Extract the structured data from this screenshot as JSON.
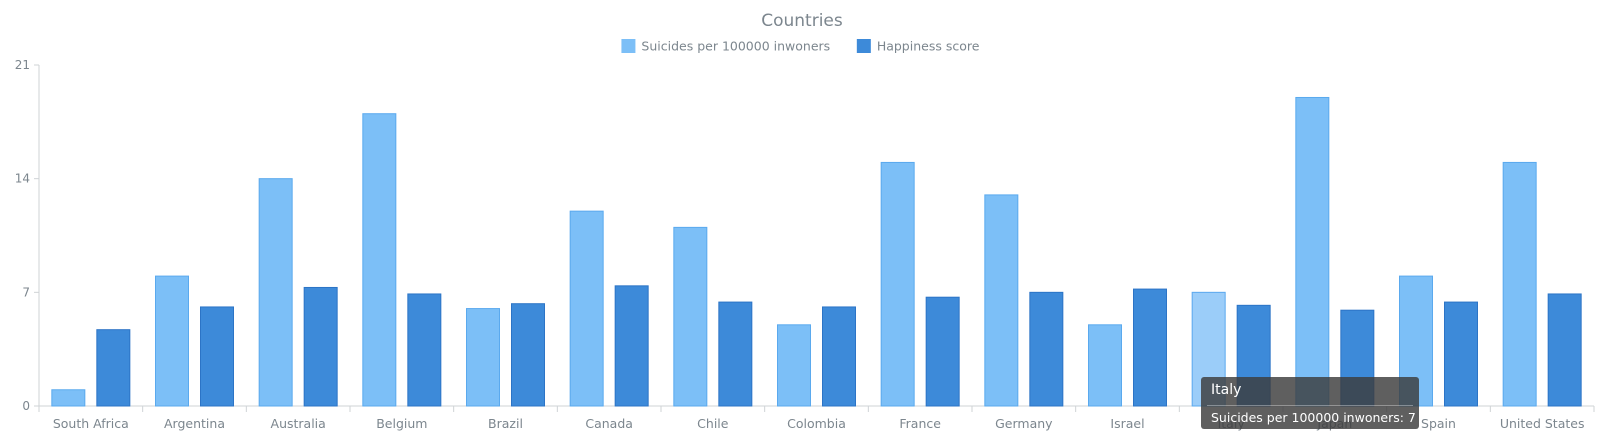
{
  "chart_data": {
    "type": "bar",
    "title": "Countries",
    "categories": [
      "South Africa",
      "Argentina",
      "Australia",
      "Belgium",
      "Brazil",
      "Canada",
      "Chile",
      "Colombia",
      "France",
      "Germany",
      "Israel",
      "Italy",
      "Japan",
      "Spain",
      "United States"
    ],
    "series": [
      {
        "name": "Suicides per 100000 inwoners",
        "color": "#7cbff7",
        "values": [
          1,
          8,
          14,
          18,
          6,
          12,
          11,
          5,
          15,
          13,
          5,
          7,
          19,
          8,
          15
        ]
      },
      {
        "name": "Happiness score",
        "color": "#3d8ad9",
        "values": [
          4.7,
          6.1,
          7.3,
          6.9,
          6.3,
          7.4,
          6.4,
          6.1,
          6.7,
          7.0,
          7.2,
          6.2,
          5.9,
          6.4,
          6.9
        ]
      }
    ],
    "ylim": [
      0,
      21
    ],
    "yticks": [
      0,
      7,
      14,
      21
    ],
    "legend_position": "top-center",
    "highlighted_category": "Italy"
  },
  "tooltip": {
    "title": "Italy",
    "text": "Suicides per 100000 inwoners: 7"
  }
}
